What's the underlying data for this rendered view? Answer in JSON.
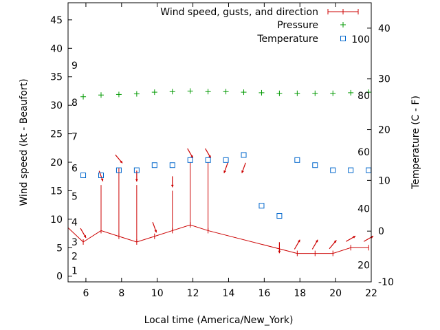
{
  "chart_data": {
    "type": "line",
    "xlabel": "Local time (America/New_York)",
    "ylabel": "Wind speed (kt - Beaufort)",
    "y2label": "Temperature (C - F)",
    "xlim": [
      5,
      22
    ],
    "ylim": [
      -1,
      48
    ],
    "y2lim": [
      -10,
      45
    ],
    "x_ticks": [
      6,
      8,
      10,
      12,
      14,
      16,
      18,
      20,
      22
    ],
    "y_ticks": [
      0,
      5,
      10,
      15,
      20,
      25,
      30,
      35,
      40,
      45
    ],
    "y2_ticks": [
      -10,
      0,
      10,
      20,
      30,
      40
    ],
    "beaufort_scale": [
      {
        "label": "1",
        "kt": 1
      },
      {
        "label": "2",
        "kt": 3.5
      },
      {
        "label": "3",
        "kt": 6
      },
      {
        "label": "4",
        "kt": 9.5
      },
      {
        "label": "5",
        "kt": 14
      },
      {
        "label": "6",
        "kt": 19
      },
      {
        "label": "7",
        "kt": 24.5
      },
      {
        "label": "8",
        "kt": 30.5
      },
      {
        "label": "9",
        "kt": 37
      }
    ],
    "fahrenheit_scale": [
      {
        "label": "20",
        "c": -6.7
      },
      {
        "label": "40",
        "c": 4.4
      },
      {
        "label": "60",
        "c": 15.6
      },
      {
        "label": "80",
        "c": 26.7
      },
      {
        "label": "100",
        "c": 37.8
      }
    ],
    "legend": {
      "position": "top-right",
      "entries": [
        "Wind speed, gusts, and direction",
        "Pressure",
        "Temperature"
      ]
    },
    "series": [
      {
        "name": "Wind speed, gusts, and direction",
        "color": "#cc0000",
        "points": [
          {
            "x": 5,
            "speed": 8.5,
            "gust": null,
            "dir": null
          },
          {
            "x": 5.85,
            "speed": 6,
            "gust": null,
            "dir": 330
          },
          {
            "x": 6.85,
            "speed": 8,
            "gust": 16,
            "dir": 340
          },
          {
            "x": 7.85,
            "speed": 7,
            "gust": 19,
            "dir": 320
          },
          {
            "x": 8.85,
            "speed": 6,
            "gust": 16,
            "dir": 360
          },
          {
            "x": 9.85,
            "speed": 7,
            "gust": null,
            "dir": 340
          },
          {
            "x": 10.85,
            "speed": 8,
            "gust": 15,
            "dir": 360
          },
          {
            "x": 11.85,
            "speed": 9,
            "gust": 20,
            "dir": 330
          },
          {
            "x": 12.85,
            "speed": 8,
            "gust": 20,
            "dir": 330
          },
          {
            "x": 17.85,
            "speed": 4,
            "gust": null,
            "dir": 210
          },
          {
            "x": 18.85,
            "speed": 4,
            "gust": null,
            "dir": 210
          },
          {
            "x": 19.85,
            "speed": 4,
            "gust": null,
            "dir": 220
          },
          {
            "x": 20.85,
            "speed": 5,
            "gust": null,
            "dir": 240
          },
          {
            "x": 21.85,
            "speed": 5,
            "gust": null,
            "dir": 240
          }
        ],
        "direction_only": [
          {
            "x": 13.85,
            "dir": 20
          },
          {
            "x": 14.85,
            "dir": 20
          },
          {
            "x": 16.85,
            "dir": 360
          }
        ]
      },
      {
        "name": "Pressure",
        "color": "#009900",
        "points": [
          {
            "x": 5.85,
            "y": 31.5
          },
          {
            "x": 6.85,
            "y": 31.8
          },
          {
            "x": 7.85,
            "y": 31.9
          },
          {
            "x": 8.85,
            "y": 32.0
          },
          {
            "x": 9.85,
            "y": 32.3
          },
          {
            "x": 10.85,
            "y": 32.4
          },
          {
            "x": 11.85,
            "y": 32.5
          },
          {
            "x": 12.85,
            "y": 32.4
          },
          {
            "x": 13.85,
            "y": 32.4
          },
          {
            "x": 14.85,
            "y": 32.3
          },
          {
            "x": 15.85,
            "y": 32.2
          },
          {
            "x": 16.85,
            "y": 32.1
          },
          {
            "x": 17.85,
            "y": 32.1
          },
          {
            "x": 18.85,
            "y": 32.1
          },
          {
            "x": 19.85,
            "y": 32.1
          },
          {
            "x": 20.85,
            "y": 32.2
          },
          {
            "x": 21.85,
            "y": 32.3
          }
        ]
      },
      {
        "name": "Temperature",
        "color": "#0066cc",
        "axis": "y2",
        "points": [
          {
            "x": 5.85,
            "y": 11
          },
          {
            "x": 6.85,
            "y": 11
          },
          {
            "x": 7.85,
            "y": 12
          },
          {
            "x": 8.85,
            "y": 12
          },
          {
            "x": 9.85,
            "y": 13
          },
          {
            "x": 10.85,
            "y": 13
          },
          {
            "x": 11.85,
            "y": 14
          },
          {
            "x": 12.85,
            "y": 14
          },
          {
            "x": 13.85,
            "y": 14
          },
          {
            "x": 14.85,
            "y": 15
          },
          {
            "x": 15.85,
            "y": 5
          },
          {
            "x": 16.85,
            "y": 3
          },
          {
            "x": 17.85,
            "y": 14
          },
          {
            "x": 18.85,
            "y": 13
          },
          {
            "x": 19.85,
            "y": 12
          },
          {
            "x": 20.85,
            "y": 12
          },
          {
            "x": 21.85,
            "y": 12
          }
        ]
      }
    ]
  }
}
